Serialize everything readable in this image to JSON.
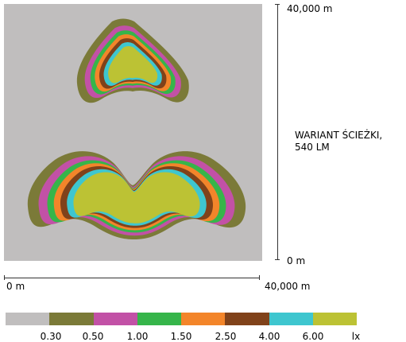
{
  "title": "WARIANT ŚCIEŻKI, 540 LM",
  "axis": {
    "y_top": "40,000 m",
    "y_bottom": "0 m",
    "x_left": "0 m",
    "x_right": "40,000 m"
  },
  "legend": {
    "unit": "lx",
    "colors": [
      "#c0bebe",
      "#7b7a38",
      "#c251a6",
      "#36b54a",
      "#f3852a",
      "#80421a",
      "#3ec6cf",
      "#bcc234"
    ],
    "thresholds": [
      "0.30",
      "0.50",
      "1.00",
      "1.50",
      "2.50",
      "4.00",
      "6.00"
    ]
  },
  "background_color": "#c0bebe"
}
